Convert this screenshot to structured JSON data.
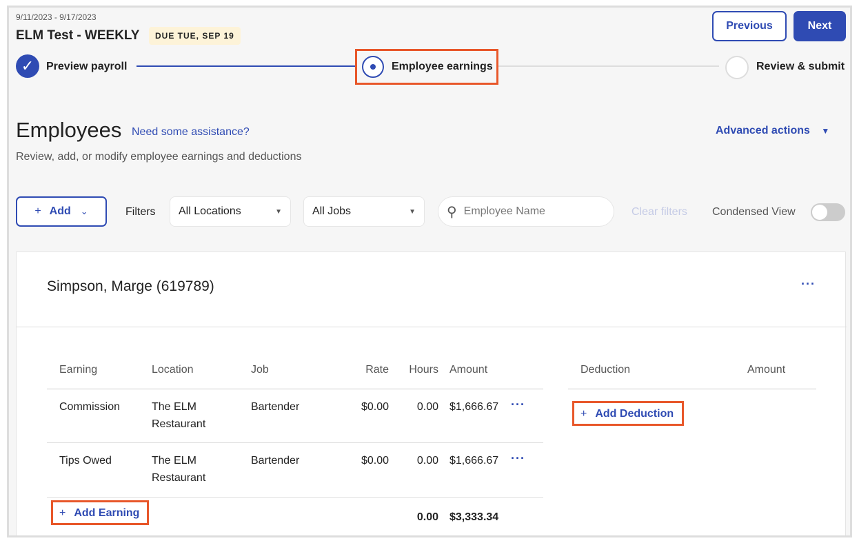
{
  "header": {
    "date_range": "9/11/2023 - 9/17/2023",
    "title": "ELM Test - WEEKLY",
    "due_badge": "DUE TUE, SEP 19",
    "previous_label": "Previous",
    "next_label": "Next"
  },
  "steps": [
    {
      "label": "Preview payroll",
      "state": "complete"
    },
    {
      "label": "Employee earnings",
      "state": "current"
    },
    {
      "label": "Review & submit",
      "state": "upcoming"
    }
  ],
  "page": {
    "title": "Employees",
    "help_link": "Need some assistance?",
    "subtitle": "Review, add, or modify employee earnings and deductions",
    "advanced_actions": "Advanced actions"
  },
  "toolbar": {
    "add_label": "Add",
    "filters_label": "Filters",
    "location_value": "All Locations",
    "jobs_value": "All Jobs",
    "search_placeholder": "Employee Name",
    "clear_filters": "Clear filters",
    "condensed_view": "Condensed View",
    "condensed_on": false
  },
  "employee": {
    "name": "Simpson, Marge (619789)",
    "earnings_headers": [
      "Earning",
      "Location",
      "Job",
      "Rate",
      "Hours",
      "Amount"
    ],
    "earnings": [
      {
        "earning": "Commission",
        "location_1": "The ELM",
        "location_2": "Restaurant",
        "job": "Bartender",
        "rate": "$0.00",
        "hours": "0.00",
        "amount": "$1,666.67"
      },
      {
        "earning": "Tips Owed",
        "location_1": "The ELM",
        "location_2": "Restaurant",
        "job": "Bartender",
        "rate": "$0.00",
        "hours": "0.00",
        "amount": "$1,666.67"
      }
    ],
    "add_earning": "Add Earning",
    "total_hours": "0.00",
    "total_amount": "$3,333.34",
    "deduction_headers": [
      "Deduction",
      "Amount"
    ],
    "add_deduction": "Add Deduction"
  },
  "colors": {
    "accent": "#2f4bb3",
    "highlight": "#e8572a",
    "badge": "#fdf3d8"
  }
}
